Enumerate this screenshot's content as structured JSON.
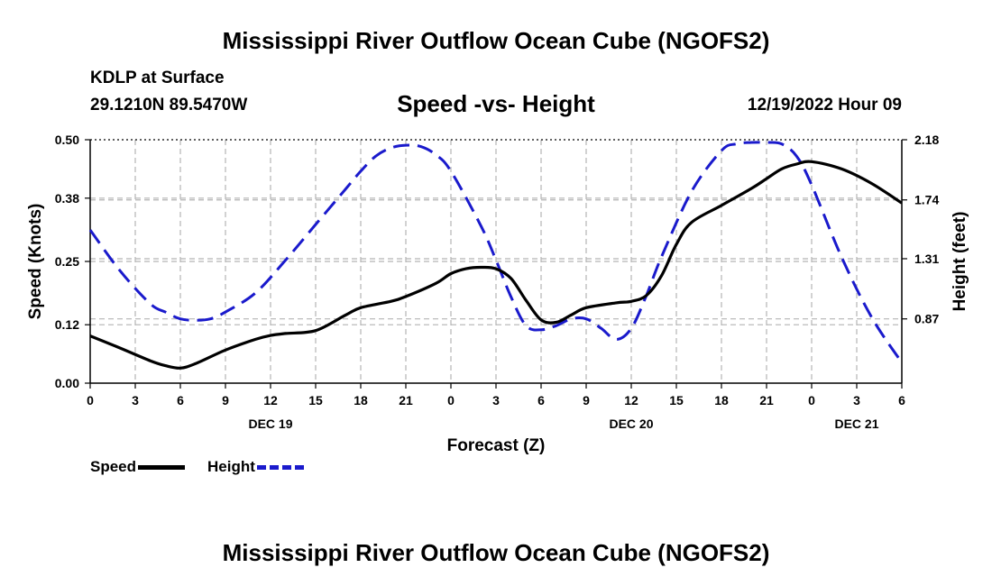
{
  "title": "Mississippi River Outflow Ocean Cube (NGOFS2)",
  "footer_title": "Mississippi River Outflow Ocean Cube (NGOFS2)",
  "station": "KDLP at Surface",
  "coords": "29.1210N  89.5470W",
  "datetime": "12/19/2022 Hour 09",
  "colors": {
    "speed": "#000000",
    "height": "#1a1acc",
    "grid": "#b4b4b4"
  },
  "chart_data": {
    "type": "line",
    "title": "Speed -vs- Height",
    "xlabel": "Forecast (Z)",
    "ylabel": "Speed (Knots)",
    "y2label": "Height (feet)",
    "x_tick_labels": [
      "0",
      "3",
      "6",
      "9",
      "12",
      "15",
      "18",
      "21",
      "0",
      "3",
      "6",
      "9",
      "12",
      "15",
      "18",
      "21",
      "0",
      "3",
      "6"
    ],
    "x_range_hours": [
      0,
      54
    ],
    "date_labels": [
      {
        "label": "DEC 19",
        "hour": 12
      },
      {
        "label": "DEC 20",
        "hour": 36
      },
      {
        "label": "DEC 21",
        "hour": 51
      }
    ],
    "y_ticks": [
      "0.00",
      "0.12",
      "0.25",
      "0.38",
      "0.50"
    ],
    "ylim": [
      0,
      0.5
    ],
    "y2_ticks": [
      "0.87",
      "1.31",
      "1.74",
      "2.18"
    ],
    "y2lim": [
      0.4,
      2.18
    ],
    "series": [
      {
        "name": "Speed",
        "axis": "left",
        "style": "solid",
        "x": [
          0,
          2,
          4,
          5,
          6,
          7,
          9,
          11,
          12,
          13,
          15,
          17,
          18,
          20,
          21,
          23,
          24,
          25,
          26,
          27,
          28,
          29,
          30,
          31,
          32,
          33,
          35,
          36,
          37,
          38,
          39,
          40,
          42,
          44,
          45,
          46,
          47,
          48,
          50,
          52,
          54
        ],
        "values": [
          0.097,
          0.072,
          0.046,
          0.036,
          0.031,
          0.04,
          0.068,
          0.09,
          0.098,
          0.102,
          0.108,
          0.14,
          0.155,
          0.168,
          0.178,
          0.205,
          0.225,
          0.235,
          0.238,
          0.235,
          0.215,
          0.17,
          0.13,
          0.125,
          0.14,
          0.155,
          0.165,
          0.168,
          0.18,
          0.22,
          0.285,
          0.33,
          0.365,
          0.4,
          0.42,
          0.44,
          0.45,
          0.455,
          0.44,
          0.41,
          0.37
        ]
      },
      {
        "name": "Height",
        "axis": "right",
        "style": "dashed",
        "x": [
          0,
          2,
          4,
          5,
          6,
          7,
          8,
          9,
          11,
          13,
          15,
          17,
          18,
          19,
          20,
          21,
          22,
          23,
          24,
          26,
          27,
          28,
          29,
          30,
          31,
          32,
          33,
          34,
          35,
          36,
          37,
          38,
          40,
          42,
          43,
          44,
          45,
          46,
          47,
          48,
          50,
          52,
          54
        ],
        "values": [
          1.52,
          1.22,
          0.98,
          0.92,
          0.87,
          0.86,
          0.87,
          0.92,
          1.06,
          1.3,
          1.56,
          1.82,
          1.95,
          2.06,
          2.12,
          2.14,
          2.13,
          2.07,
          1.95,
          1.55,
          1.3,
          1.03,
          0.82,
          0.79,
          0.82,
          0.87,
          0.87,
          0.8,
          0.72,
          0.8,
          1.04,
          1.32,
          1.8,
          2.1,
          2.15,
          2.16,
          2.16,
          2.15,
          2.06,
          1.85,
          1.32,
          0.88,
          0.55
        ]
      }
    ],
    "legend": [
      "Speed",
      "Height"
    ]
  }
}
